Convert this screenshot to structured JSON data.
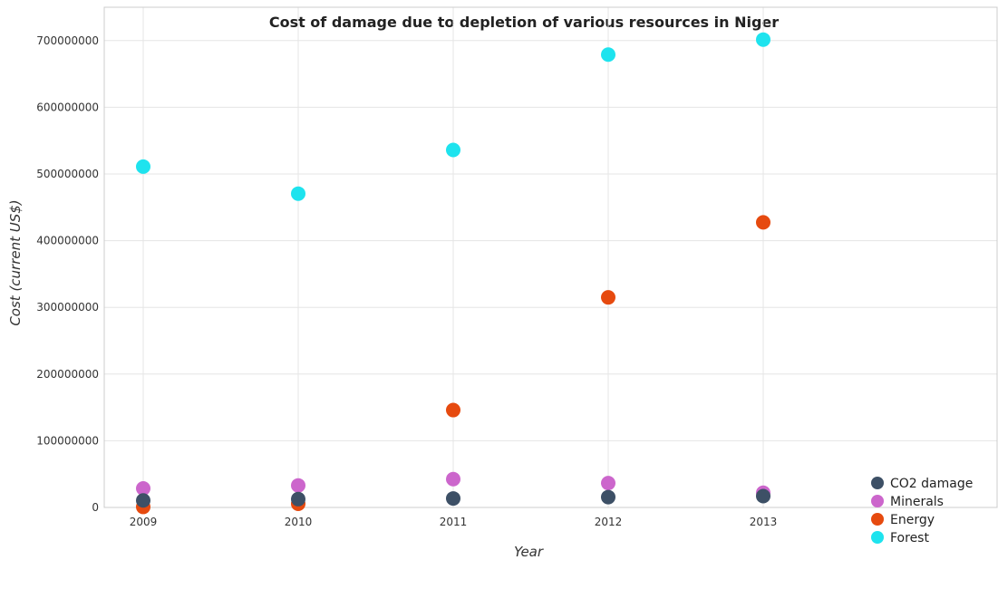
{
  "chart_data": {
    "type": "scatter",
    "title": "Cost of damage due to depletion of various resources in Niger",
    "xlabel": "Year",
    "ylabel": "Cost (current US$)",
    "categories": [
      "2009",
      "2010",
      "2011",
      "2012",
      "2013"
    ],
    "ylim": [
      0,
      750000000
    ],
    "yticks": [
      0,
      100000000,
      200000000,
      300000000,
      400000000,
      500000000,
      600000000,
      700000000
    ],
    "ytick_labels": [
      "0",
      "100000000",
      "200000000",
      "300000000",
      "400000000",
      "500000000",
      "600000000",
      "700000000"
    ],
    "grid": true,
    "legend_position": "bottom-right",
    "series": [
      {
        "name": "CO2 damage",
        "color": "#3d5066",
        "values": [
          10500000,
          12500000,
          13500000,
          15500000,
          17000000
        ]
      },
      {
        "name": "Minerals",
        "color": "#cc66cc",
        "values": [
          28500000,
          33000000,
          42500000,
          36500000,
          22000000
        ]
      },
      {
        "name": "Energy",
        "color": "#e64a0f",
        "values": [
          800000,
          5500000,
          146000000,
          315000000,
          427500000
        ]
      },
      {
        "name": "Forest",
        "color": "#1ee3ee",
        "values": [
          511000000,
          470500000,
          536000000,
          679000000,
          701500000
        ]
      }
    ]
  }
}
